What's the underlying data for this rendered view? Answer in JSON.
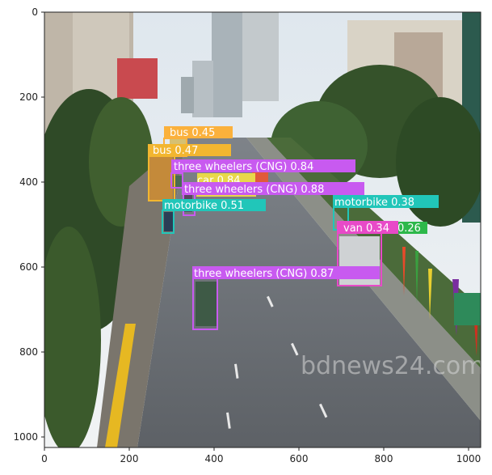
{
  "axes": {
    "x_ticks": [
      "0",
      "200",
      "400",
      "600",
      "800",
      "1000"
    ],
    "y_ticks": [
      "0",
      "200",
      "400",
      "600",
      "800",
      "1000"
    ]
  },
  "watermark": "bdnews24.com",
  "colors": {
    "bus": "#fbb13c",
    "bus_alt": "#f2b630",
    "three_wheelers": "#c85af0",
    "car": "#e8d84a",
    "motorbike": "#21c6b9",
    "van": "#e84ac8",
    "green_label": "#2db84a"
  },
  "detections": [
    {
      "label": "bus 0.45"
    },
    {
      "label": "bus 0.47"
    },
    {
      "label": "three wheelers (CNG) 0.84"
    },
    {
      "label": "car 0.84"
    },
    {
      "label": "three wheelers (CNG) 0.88"
    },
    {
      "label": "motorbike 0.51"
    },
    {
      "label": "motorbike 0.38"
    },
    {
      "label": "van 0.34"
    },
    {
      "label": "0.26"
    },
    {
      "label": "three wheelers (CNG) 0.87"
    }
  ]
}
